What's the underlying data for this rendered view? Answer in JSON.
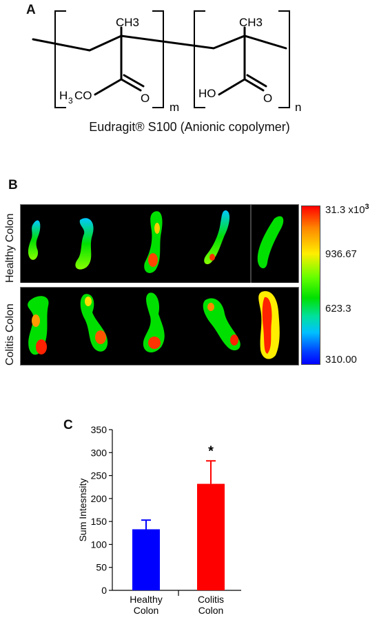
{
  "panelA": {
    "label": "A",
    "methyl_left": "CH3",
    "methyl_right": "CH3",
    "ester_group_h": "H",
    "ester_group_sub": "3",
    "ester_group_co": "CO",
    "acid_group": "HO",
    "oxygen_left": "O",
    "oxygen_right": "O",
    "subscript_m": "m",
    "subscript_n": "n",
    "caption": "Eudragit® S100 (Anionic copolymer)"
  },
  "panelB": {
    "label": "B",
    "row_healthy": "Healthy Colon",
    "row_colitis": "Colitis Colon",
    "colorscale": {
      "top_label": "31.3 x10",
      "top_exp": "3",
      "mid_high": "936.67",
      "mid_low": "623.3",
      "bottom_label": "310.00",
      "colors": [
        "#ff0000",
        "#ffee00",
        "#00e000",
        "#00c0ff",
        "#0000ff"
      ]
    }
  },
  "panelC": {
    "label": "C",
    "significance": "*",
    "chart_data": {
      "type": "bar",
      "categories": [
        "Healthy Colon",
        "Colitis Colon"
      ],
      "category_lines": [
        [
          "Healthy",
          "Colon"
        ],
        [
          "Colitis",
          "Colon"
        ]
      ],
      "values": [
        133,
        232
      ],
      "errors": [
        20,
        50
      ],
      "colors": [
        "#0000ff",
        "#ff0000"
      ],
      "ylabel": "Sum Intesnsity",
      "ylim": [
        0,
        350
      ],
      "yticks": [
        0,
        50,
        100,
        150,
        200,
        250,
        300,
        350
      ],
      "grid": false
    }
  }
}
